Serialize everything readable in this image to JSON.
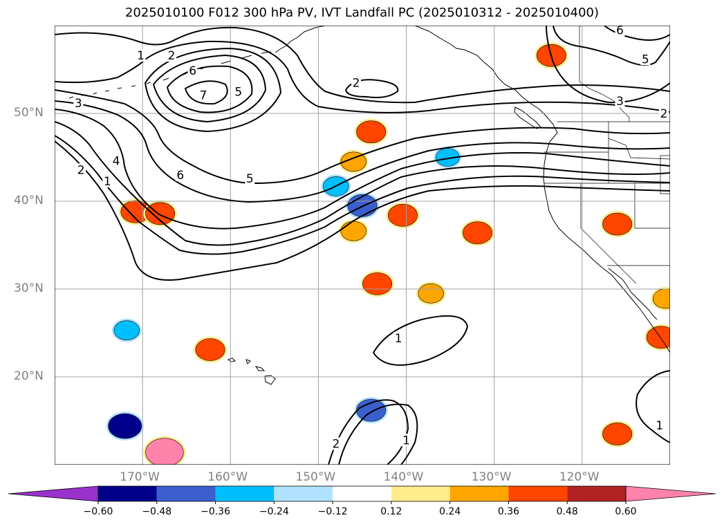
{
  "title": "2025010100 F012 300 hPa PV, IVT Landfall PC (2025010312 - 2025010400)",
  "map": {
    "projection": "PlateCarree",
    "extent_lon": [
      -180,
      -110
    ],
    "extent_lat": [
      10,
      60
    ],
    "grid": true,
    "lon_ticks": [
      {
        "value": -170,
        "label": "170°W"
      },
      {
        "value": -160,
        "label": "160°W"
      },
      {
        "value": -150,
        "label": "150°W"
      },
      {
        "value": -140,
        "label": "140°W"
      },
      {
        "value": -130,
        "label": "130°W"
      },
      {
        "value": -120,
        "label": "120°W"
      }
    ],
    "lat_ticks": [
      {
        "value": 50,
        "label": "50°N"
      },
      {
        "value": 40,
        "label": "40°N"
      },
      {
        "value": 30,
        "label": "30°N"
      },
      {
        "value": 20,
        "label": "20°N"
      }
    ]
  },
  "pv_contours": {
    "levels_shown": [
      "1",
      "2",
      "3",
      "4",
      "5",
      "6",
      "7"
    ],
    "labels": [
      {
        "text": "1",
        "lon": -170.2,
        "lat": 56.6
      },
      {
        "text": "2",
        "lon": -166.7,
        "lat": 56.6
      },
      {
        "text": "6",
        "lon": -164.3,
        "lat": 54.9
      },
      {
        "text": "7",
        "lon": -163.1,
        "lat": 52.1
      },
      {
        "text": "5",
        "lon": -159.1,
        "lat": 52.5
      },
      {
        "text": "2",
        "lon": -145.7,
        "lat": 53.5
      },
      {
        "text": "2",
        "lon": -177.0,
        "lat": 43.6
      },
      {
        "text": "4",
        "lon": -173.0,
        "lat": 44.6
      },
      {
        "text": "1",
        "lon": -174.0,
        "lat": 42.3
      },
      {
        "text": "6",
        "lon": -165.7,
        "lat": 43.0
      },
      {
        "text": "5",
        "lon": -157.8,
        "lat": 42.6
      },
      {
        "text": "3",
        "lon": -177.3,
        "lat": 51.2
      },
      {
        "text": "6",
        "lon": -115.7,
        "lat": 59.5
      },
      {
        "text": "5",
        "lon": -112.8,
        "lat": 56.2
      },
      {
        "text": "3",
        "lon": -115.7,
        "lat": 51.4
      },
      {
        "text": "2",
        "lon": -110.7,
        "lat": 50.0
      },
      {
        "text": "1",
        "lon": -140.9,
        "lat": 24.4
      },
      {
        "text": "2",
        "lon": -148.0,
        "lat": 12.4
      },
      {
        "text": "1",
        "lon": -140.0,
        "lat": 12.8
      },
      {
        "text": "1",
        "lon": -111.2,
        "lat": 14.5
      }
    ]
  },
  "ivt_pc_anomalies": [
    {
      "lon": -144.0,
      "lat": 47.9,
      "value": 0.4
    },
    {
      "lon": -146.0,
      "lat": 44.5,
      "value": 0.3
    },
    {
      "lon": -148.0,
      "lat": 41.7,
      "value": -0.3
    },
    {
      "lon": -145.0,
      "lat": 39.5,
      "value": -0.4
    },
    {
      "lon": -140.4,
      "lat": 38.4,
      "value": 0.4
    },
    {
      "lon": -135.3,
      "lat": 45.0,
      "value": -0.25
    },
    {
      "lon": -131.9,
      "lat": 36.4,
      "value": 0.4
    },
    {
      "lon": -170.8,
      "lat": 38.8,
      "value": 0.4
    },
    {
      "lon": -168.0,
      "lat": 38.6,
      "value": 0.4
    },
    {
      "lon": -146.0,
      "lat": 36.6,
      "value": 0.3
    },
    {
      "lon": -143.3,
      "lat": 30.6,
      "value": 0.4
    },
    {
      "lon": -137.2,
      "lat": 29.5,
      "value": 0.3
    },
    {
      "lon": -162.3,
      "lat": 23.1,
      "value": 0.4
    },
    {
      "lon": -171.8,
      "lat": 25.3,
      "value": -0.3
    },
    {
      "lon": -144.0,
      "lat": 16.2,
      "value": -0.4
    },
    {
      "lon": -172.0,
      "lat": 14.4,
      "value": -0.5
    },
    {
      "lon": -167.5,
      "lat": 11.4,
      "value": 0.62
    },
    {
      "lon": -123.5,
      "lat": 56.6,
      "value": 0.4
    },
    {
      "lon": -116.0,
      "lat": 37.4,
      "value": 0.4
    },
    {
      "lon": -111.0,
      "lat": 24.5,
      "value": 0.4
    },
    {
      "lon": -110.5,
      "lat": 28.9,
      "value": 0.3
    },
    {
      "lon": -116.0,
      "lat": 13.5,
      "value": 0.4
    }
  ],
  "colorbar": {
    "ticks": [
      "−0.60",
      "−0.48",
      "−0.36",
      "−0.24",
      "−0.12",
      "0.12",
      "0.24",
      "0.36",
      "0.48",
      "0.60"
    ],
    "colors": [
      "#9932cc",
      "#00008b",
      "#3a5fcd",
      "#00bfff",
      "#b0e2ff",
      "#ffffff",
      "#ffec8b",
      "#ffa500",
      "#ff4500",
      "#b22222",
      "#ff82ab"
    ]
  }
}
